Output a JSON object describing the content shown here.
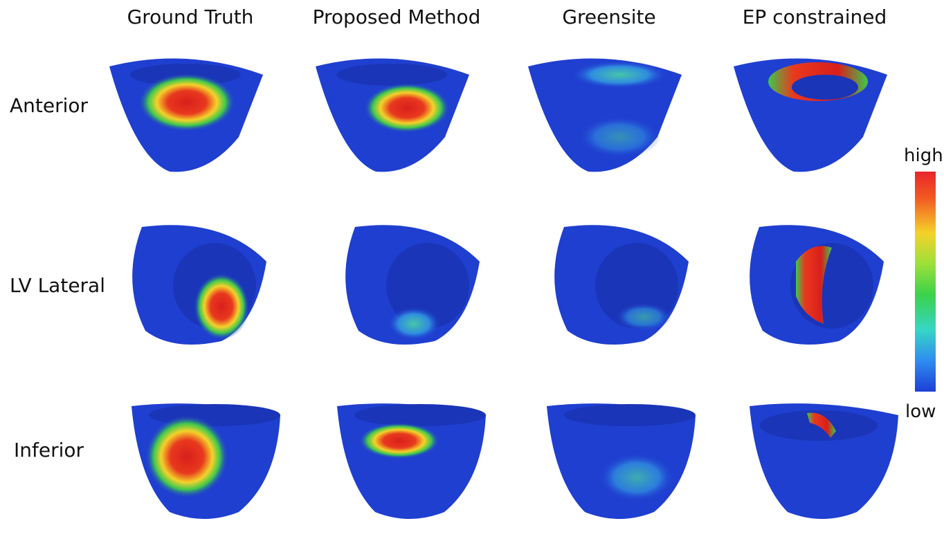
{
  "columns": [
    "Ground Truth",
    "Proposed Method",
    "Greensite",
    "EP constrained"
  ],
  "rows": [
    "Anterior",
    "LV Lateral",
    "Inferior"
  ],
  "colorbar": {
    "high_label": "high",
    "low_label": "low"
  },
  "colors": {
    "base_blue": "#1f3fd0",
    "rim_blue": "#2a4fe0",
    "hot_red": "#e0281e",
    "mid_yellow": "#f2d12a",
    "mid_green": "#43c64b",
    "cyan": "#38c8d8"
  }
}
